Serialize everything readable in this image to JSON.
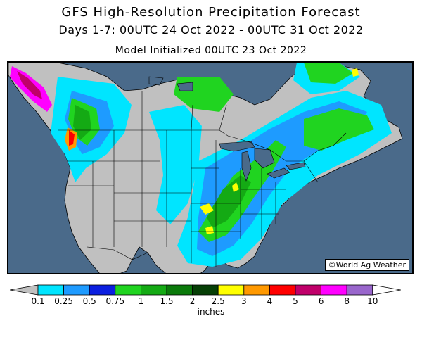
{
  "header": {
    "title": "GFS High-Resolution Precipitation Forecast",
    "subtitle": "Days 1-7: 00UTC 24 Oct 2022 - 00UTC 31 Oct 2022",
    "init": "Model Initialized 00UTC 23 Oct 2022"
  },
  "credit": "©World Ag Weather",
  "legend": {
    "units": "inches",
    "ticks": [
      "0.1",
      "0.25",
      "0.5",
      "0.75",
      "1",
      "1.5",
      "2",
      "2.5",
      "3",
      "4",
      "5",
      "6",
      "8",
      "10"
    ],
    "colors": [
      "#c0c0c0",
      "#00e5ff",
      "#1e9bff",
      "#0b1fe0",
      "#20d420",
      "#14aa14",
      "#0a7a0a",
      "#063f06",
      "#ffff00",
      "#ff9900",
      "#ff0000",
      "#c0006a",
      "#ff00ff",
      "#9966cc",
      "#ffffff"
    ]
  },
  "map_colors": {
    "ocean": "#4a6a8a",
    "land": "#c0c0c0",
    "lakes": "#4a6a8a",
    "borders": "#000000"
  }
}
